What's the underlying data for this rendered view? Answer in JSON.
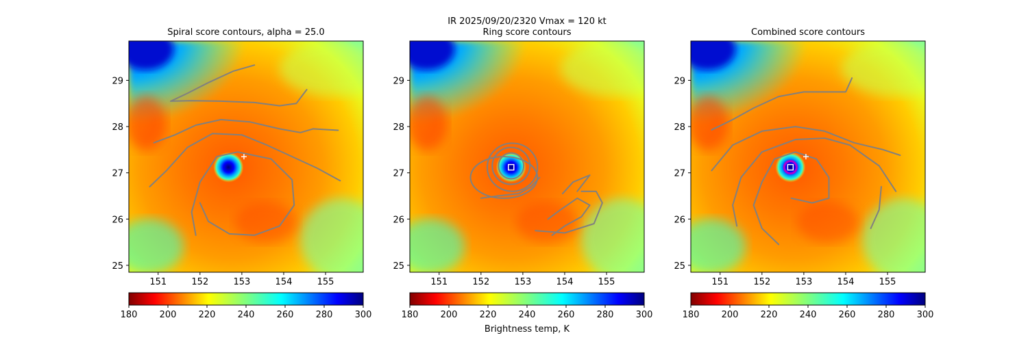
{
  "figure": {
    "suptitle": "IR  2025/09/20/2320    Vmax = 120 kt",
    "colorbar_label": "Brightness temp, K"
  },
  "chart_data": [
    {
      "type": "heatmap",
      "title": "Spiral score contours, alpha = 25.0",
      "xlim": [
        150.3,
        155.9
      ],
      "ylim": [
        24.85,
        29.85
      ],
      "xticks": [
        "151",
        "152",
        "153",
        "154",
        "155"
      ],
      "yticks": [
        "25",
        "26",
        "27",
        "28",
        "29"
      ],
      "colorbar": {
        "range": [
          180,
          300
        ],
        "ticks": [
          "180",
          "200",
          "220",
          "240",
          "260",
          "280",
          "300"
        ]
      },
      "marker": {
        "type": "plus",
        "lon": 153.05,
        "lat": 27.35
      },
      "center": {
        "lon": 152.68,
        "lat": 27.12
      },
      "contours": [
        [
          [
            151.3,
            28.55
          ],
          [
            151.7,
            28.72
          ],
          [
            152.2,
            28.95
          ],
          [
            152.8,
            29.2
          ],
          [
            153.3,
            29.33
          ]
        ],
        [
          [
            151.3,
            28.55
          ],
          [
            151.8,
            28.56
          ],
          [
            152.5,
            28.55
          ],
          [
            153.3,
            28.52
          ],
          [
            153.9,
            28.45
          ],
          [
            154.3,
            28.5
          ],
          [
            154.55,
            28.8
          ]
        ],
        [
          [
            150.9,
            27.65
          ],
          [
            151.4,
            27.82
          ],
          [
            151.9,
            28.03
          ],
          [
            152.5,
            28.15
          ],
          [
            153.2,
            28.1
          ],
          [
            153.9,
            27.95
          ],
          [
            154.4,
            27.87
          ],
          [
            154.7,
            27.95
          ],
          [
            155.3,
            27.92
          ]
        ],
        [
          [
            150.8,
            26.7
          ],
          [
            151.2,
            27.05
          ],
          [
            151.7,
            27.55
          ],
          [
            152.3,
            27.85
          ],
          [
            153.0,
            27.82
          ],
          [
            153.6,
            27.6
          ],
          [
            154.2,
            27.35
          ],
          [
            154.8,
            27.1
          ],
          [
            155.35,
            26.83
          ]
        ],
        [
          [
            151.9,
            25.65
          ],
          [
            151.8,
            26.15
          ],
          [
            152.0,
            26.8
          ],
          [
            152.4,
            27.35
          ],
          [
            152.9,
            27.45
          ],
          [
            153.7,
            27.3
          ],
          [
            154.2,
            26.85
          ],
          [
            154.25,
            26.3
          ],
          [
            153.9,
            25.85
          ],
          [
            153.3,
            25.65
          ],
          [
            152.7,
            25.68
          ],
          [
            152.2,
            25.95
          ],
          [
            152.0,
            26.35
          ]
        ]
      ]
    },
    {
      "type": "heatmap",
      "title": "Ring score contours",
      "xlim": [
        150.3,
        155.9
      ],
      "ylim": [
        24.85,
        29.85
      ],
      "xticks": [
        "151",
        "152",
        "153",
        "154",
        "155"
      ],
      "yticks": [
        "25",
        "26",
        "27",
        "28",
        "29"
      ],
      "colorbar": {
        "range": [
          180,
          300
        ],
        "ticks": [
          "180",
          "200",
          "220",
          "240",
          "260",
          "280",
          "300"
        ]
      },
      "marker": {
        "type": "square",
        "lon": 152.72,
        "lat": 27.12
      },
      "center": {
        "lon": 152.72,
        "lat": 27.12
      },
      "rings": [
        {
          "lon": 152.72,
          "lat": 27.15,
          "rx": 0.3,
          "ry": 0.28
        },
        {
          "lon": 152.72,
          "lat": 27.15,
          "rx": 0.45,
          "ry": 0.4
        },
        {
          "lon": 152.75,
          "lat": 27.12,
          "rx": 0.6,
          "ry": 0.52
        },
        {
          "lon": 152.55,
          "lat": 26.9,
          "rx": 0.8,
          "ry": 0.45
        }
      ],
      "contours": [
        [
          [
            152.0,
            26.45
          ],
          [
            152.4,
            26.5
          ],
          [
            152.9,
            26.55
          ],
          [
            153.2,
            26.7
          ],
          [
            153.4,
            26.9
          ]
        ],
        [
          [
            153.7,
            25.65
          ],
          [
            154.0,
            25.85
          ],
          [
            154.4,
            26.05
          ],
          [
            154.6,
            26.3
          ],
          [
            154.3,
            26.45
          ],
          [
            153.9,
            26.2
          ],
          [
            153.6,
            26.0
          ]
        ],
        [
          [
            153.3,
            25.75
          ],
          [
            154.0,
            25.7
          ],
          [
            154.7,
            25.9
          ],
          [
            154.9,
            26.35
          ],
          [
            154.75,
            26.6
          ],
          [
            154.4,
            26.6
          ]
        ],
        [
          [
            154.3,
            26.6
          ],
          [
            154.6,
            26.95
          ],
          [
            154.2,
            26.8
          ],
          [
            153.95,
            26.55
          ]
        ]
      ]
    },
    {
      "type": "heatmap",
      "title": "Combined score contours",
      "xlim": [
        150.3,
        155.9
      ],
      "ylim": [
        24.85,
        29.85
      ],
      "xticks": [
        "151",
        "152",
        "153",
        "154",
        "155"
      ],
      "yticks": [
        "25",
        "26",
        "27",
        "28",
        "29"
      ],
      "colorbar": {
        "range": [
          180,
          300
        ],
        "ticks": [
          "180",
          "200",
          "220",
          "240",
          "260",
          "280",
          "300"
        ]
      },
      "marker": {
        "type": "plus",
        "lon": 153.05,
        "lat": 27.35
      },
      "center": {
        "lon": 152.68,
        "lat": 27.12
      },
      "contours": [
        [
          [
            150.8,
            27.93
          ],
          [
            151.3,
            28.15
          ],
          [
            151.8,
            28.4
          ],
          [
            152.4,
            28.65
          ],
          [
            153.0,
            28.75
          ],
          [
            153.6,
            28.75
          ],
          [
            154.0,
            28.75
          ],
          [
            154.15,
            29.05
          ]
        ],
        [
          [
            150.8,
            27.05
          ],
          [
            151.3,
            27.6
          ],
          [
            152.0,
            27.9
          ],
          [
            152.8,
            28.0
          ],
          [
            153.5,
            27.9
          ],
          [
            154.2,
            27.65
          ],
          [
            154.9,
            27.5
          ],
          [
            155.3,
            27.38
          ]
        ],
        [
          [
            151.4,
            25.85
          ],
          [
            151.3,
            26.3
          ],
          [
            151.5,
            26.9
          ],
          [
            152.0,
            27.45
          ],
          [
            152.8,
            27.72
          ],
          [
            153.5,
            27.75
          ],
          [
            154.1,
            27.6
          ],
          [
            154.8,
            27.15
          ],
          [
            155.2,
            26.6
          ]
        ],
        [
          [
            154.6,
            25.8
          ],
          [
            154.8,
            26.2
          ],
          [
            154.85,
            26.7
          ]
        ],
        [
          [
            152.4,
            25.45
          ],
          [
            152.0,
            25.8
          ],
          [
            151.8,
            26.3
          ],
          [
            152.0,
            26.8
          ]
        ],
        [
          [
            152.0,
            26.8
          ],
          [
            152.3,
            27.3
          ],
          [
            152.8,
            27.45
          ],
          [
            153.3,
            27.3
          ],
          [
            153.6,
            26.9
          ],
          [
            153.6,
            26.45
          ],
          [
            153.2,
            26.35
          ],
          [
            152.7,
            26.45
          ]
        ]
      ]
    }
  ]
}
